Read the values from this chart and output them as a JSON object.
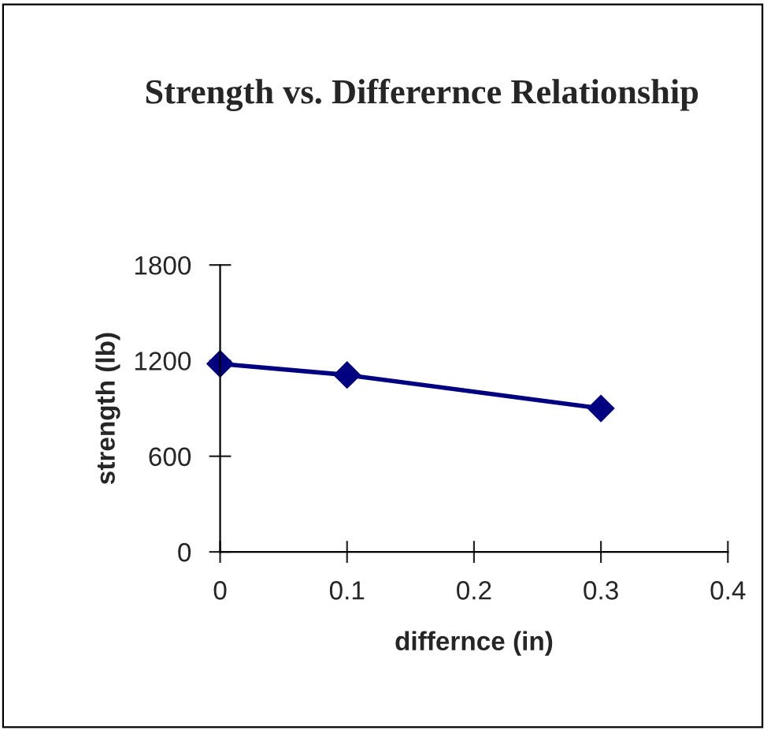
{
  "chart_data": {
    "type": "line",
    "title": "Strength vs. Differernce Relationship",
    "xlabel": "differnce (in)",
    "ylabel": "strength (lb)",
    "x": [
      0,
      0.1,
      0.3
    ],
    "series": [
      {
        "color": "#000080",
        "values": [
          1180,
          1110,
          900
        ]
      }
    ],
    "xlim": [
      0,
      0.4
    ],
    "xticks": [
      0,
      0.1,
      0.2,
      0.3,
      0.4
    ],
    "ylim": [
      0,
      1800
    ],
    "yticks": [
      0,
      600,
      1200,
      1800
    ],
    "grid": false,
    "marker": "diamond",
    "line_style": "solid"
  }
}
